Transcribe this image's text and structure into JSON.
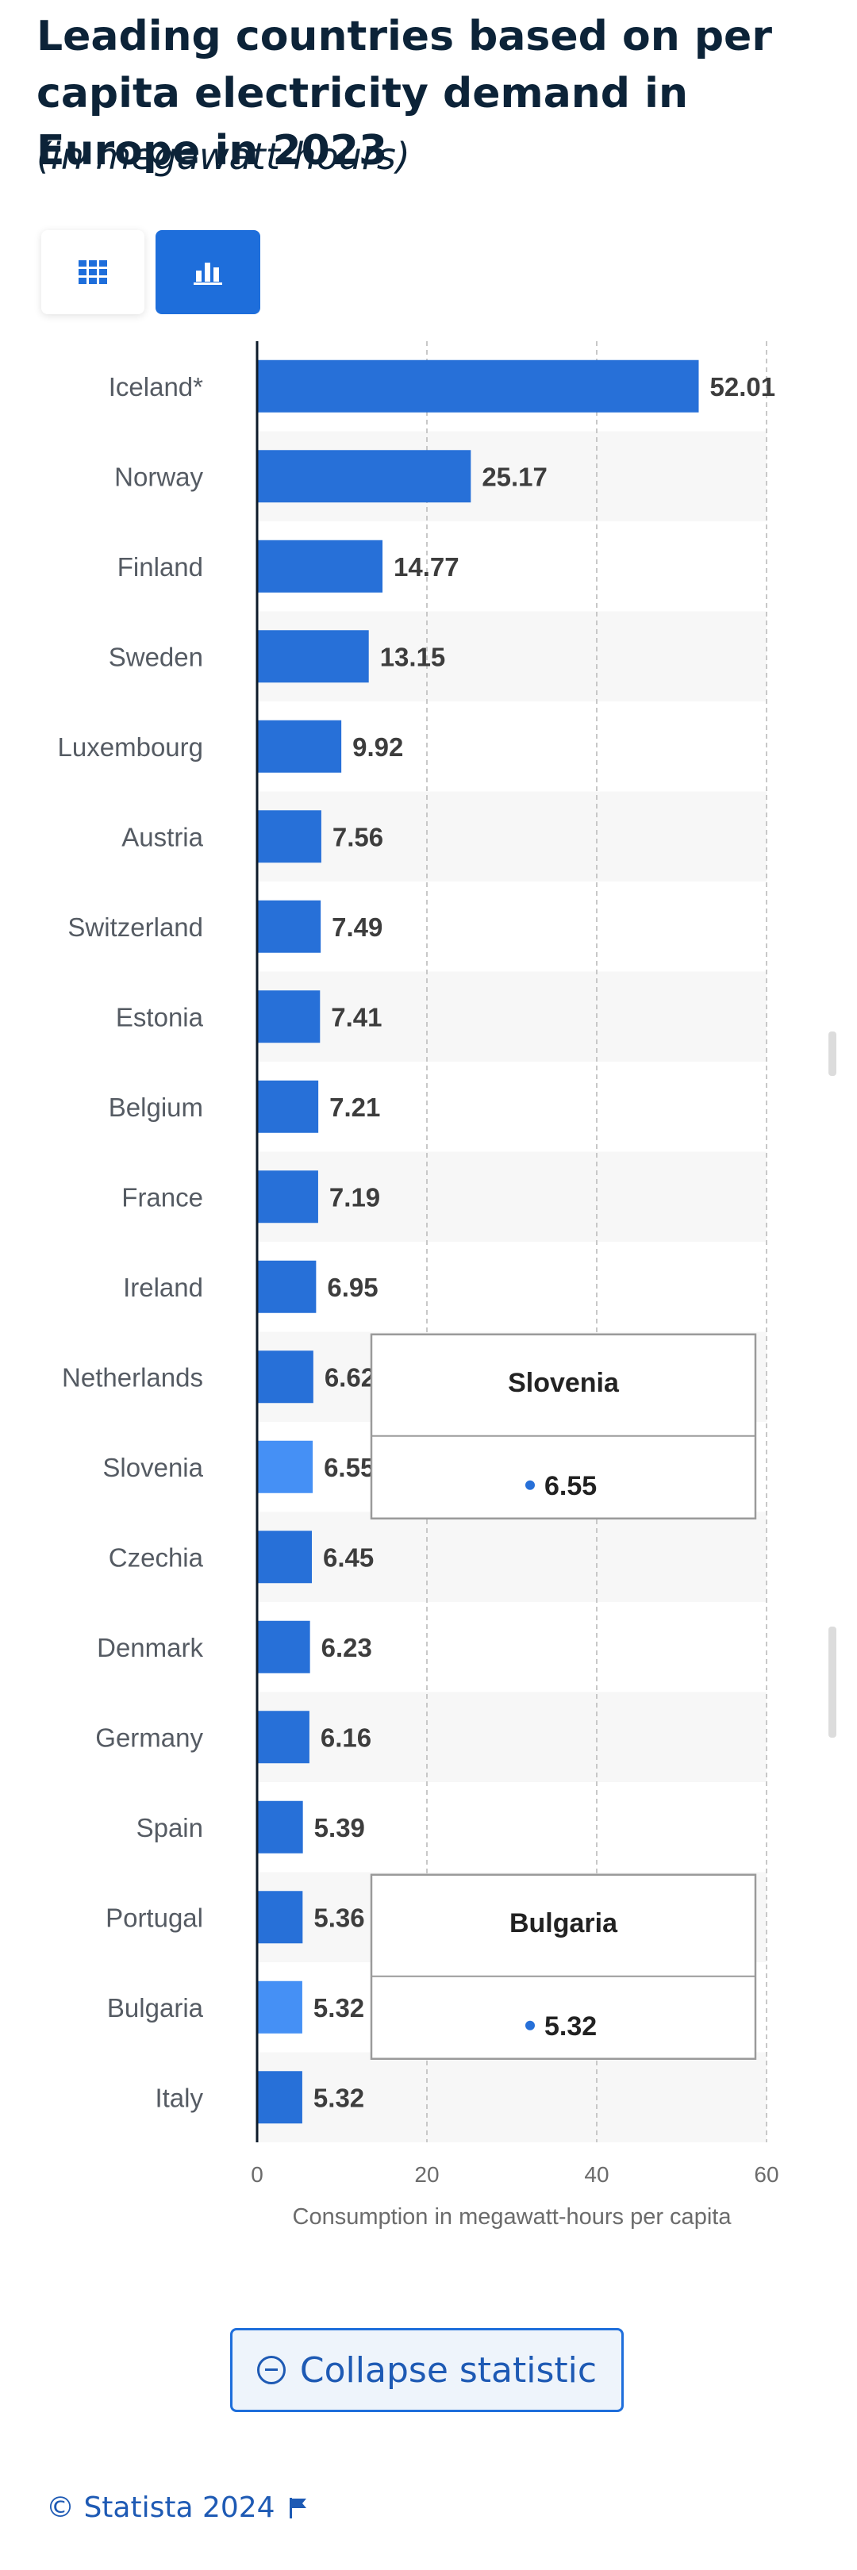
{
  "header": {
    "title": "Leading countries based on per capita electricity demand in Europe in 2023",
    "subtitle": "(in megawatt-hours)"
  },
  "toolbar": {
    "table_icon": "grid-icon",
    "chart_icon": "bar-chart-icon"
  },
  "colors": {
    "bar": "#2770d8",
    "bar_highlight": "#4590f5",
    "axis": "#0d1b2a",
    "accent": "#1e6edb"
  },
  "chart_data": {
    "type": "bar",
    "orientation": "horizontal",
    "categories": [
      "Iceland*",
      "Norway",
      "Finland",
      "Sweden",
      "Luxembourg",
      "Austria",
      "Switzerland",
      "Estonia",
      "Belgium",
      "France",
      "Ireland",
      "Netherlands",
      "Slovenia",
      "Czechia",
      "Denmark",
      "Germany",
      "Spain",
      "Portugal",
      "Bulgaria",
      "Italy"
    ],
    "values": [
      52.01,
      25.17,
      14.77,
      13.15,
      9.92,
      7.56,
      7.49,
      7.41,
      7.21,
      7.19,
      6.95,
      6.62,
      6.55,
      6.45,
      6.23,
      6.16,
      5.39,
      5.36,
      5.32,
      5.32
    ],
    "value_labels": [
      "52.01",
      "25.17",
      "14.77",
      "13.15",
      "9.92",
      "7.56",
      "7.49",
      "7.41",
      "7.21",
      "7.19",
      "6.95",
      "6.62",
      "6.55",
      "6.45",
      "6.23",
      "6.16",
      "5.39",
      "5.36",
      "5.32",
      "5.32"
    ],
    "xlabel": "Consumption in megawatt-hours per capita",
    "xlim": [
      0,
      60
    ],
    "xticks": [
      0,
      20,
      40,
      60
    ],
    "grid": true,
    "highlighted": [
      "Slovenia",
      "Bulgaria"
    ],
    "tooltips": [
      {
        "category": "Slovenia",
        "value": "6.55"
      },
      {
        "category": "Bulgaria",
        "value": "5.32"
      }
    ]
  },
  "footer": {
    "collapse_label": "Collapse statistic",
    "copyright": "© Statista 2024"
  }
}
